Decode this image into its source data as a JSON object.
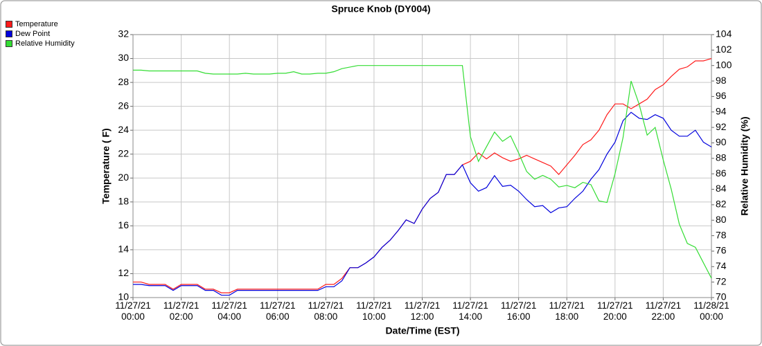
{
  "chart_data": {
    "type": "line",
    "title": "Spruce Knob (DY004)",
    "xlabel": "Date/Time (EST)",
    "ylabel": "Temperature ( F)",
    "y2label": "Relative Humidity (%)",
    "grid": true,
    "legend": "top-left",
    "x": [
      "11/27/21 00:00",
      "11/27/21 00:20",
      "11/27/21 00:40",
      "11/27/21 01:00",
      "11/27/21 01:20",
      "11/27/21 01:40",
      "11/27/21 02:00",
      "11/27/21 02:20",
      "11/27/21 02:40",
      "11/27/21 03:00",
      "11/27/21 03:20",
      "11/27/21 03:40",
      "11/27/21 04:00",
      "11/27/21 04:20",
      "11/27/21 04:40",
      "11/27/21 05:00",
      "11/27/21 05:20",
      "11/27/21 05:40",
      "11/27/21 06:00",
      "11/27/21 06:20",
      "11/27/21 06:40",
      "11/27/21 07:00",
      "11/27/21 07:20",
      "11/27/21 07:40",
      "11/27/21 08:00",
      "11/27/21 08:20",
      "11/27/21 08:40",
      "11/27/21 09:00",
      "11/27/21 09:20",
      "11/27/21 09:40",
      "11/27/21 10:00",
      "11/27/21 10:20",
      "11/27/21 10:40",
      "11/27/21 11:00",
      "11/27/21 11:20",
      "11/27/21 11:40",
      "11/27/21 12:00",
      "11/27/21 12:20",
      "11/27/21 12:40",
      "11/27/21 13:00",
      "11/27/21 13:20",
      "11/27/21 13:40",
      "11/27/21 14:00",
      "11/27/21 14:20",
      "11/27/21 14:40",
      "11/27/21 15:00",
      "11/27/21 15:20",
      "11/27/21 15:40",
      "11/27/21 16:00",
      "11/27/21 16:20",
      "11/27/21 16:40",
      "11/27/21 17:00",
      "11/27/21 17:20",
      "11/27/21 17:40",
      "11/27/21 18:00",
      "11/27/21 18:20",
      "11/27/21 18:40",
      "11/27/21 19:00",
      "11/27/21 19:20",
      "11/27/21 19:40",
      "11/27/21 20:00",
      "11/27/21 20:20",
      "11/27/21 20:40",
      "11/27/21 21:00",
      "11/27/21 21:20",
      "11/27/21 21:40",
      "11/27/21 22:00",
      "11/27/21 22:20",
      "11/27/21 22:40",
      "11/27/21 23:00",
      "11/27/21 23:20",
      "11/27/21 23:40",
      "11/28/21 00:00"
    ],
    "xlim": [
      "11/27/21 00:00",
      "11/28/21 00:00"
    ],
    "xticks": [
      {
        "value": "11/27/21 00:00",
        "label": "11/27/21\n00:00"
      },
      {
        "value": "11/27/21 02:00",
        "label": "11/27/21\n02:00"
      },
      {
        "value": "11/27/21 04:00",
        "label": "11/27/21\n04:00"
      },
      {
        "value": "11/27/21 06:00",
        "label": "11/27/21\n06:00"
      },
      {
        "value": "11/27/21 08:00",
        "label": "11/27/21\n08:00"
      },
      {
        "value": "11/27/21 10:00",
        "label": "11/27/21\n10:00"
      },
      {
        "value": "11/27/21 12:00",
        "label": "11/27/21\n12:00"
      },
      {
        "value": "11/27/21 14:00",
        "label": "11/27/21\n14:00"
      },
      {
        "value": "11/27/21 16:00",
        "label": "11/27/21\n16:00"
      },
      {
        "value": "11/27/21 18:00",
        "label": "11/27/21\n18:00"
      },
      {
        "value": "11/27/21 20:00",
        "label": "11/27/21\n20:00"
      },
      {
        "value": "11/27/21 22:00",
        "label": "11/27/21\n22:00"
      },
      {
        "value": "11/28/21 00:00",
        "label": "11/28/21\n00:00"
      }
    ],
    "ylim": [
      10,
      32
    ],
    "yticks": [
      10,
      12,
      14,
      16,
      18,
      20,
      22,
      24,
      26,
      28,
      30,
      32
    ],
    "y2lim": [
      70,
      104
    ],
    "y2ticks": [
      70,
      72,
      74,
      76,
      78,
      80,
      82,
      84,
      86,
      88,
      90,
      92,
      94,
      96,
      98,
      100,
      102,
      104
    ],
    "series": [
      {
        "name": "Temperature",
        "color": "#ff1a1a",
        "axis": "y",
        "values": [
          11.3,
          11.3,
          11.1,
          11.1,
          11.1,
          10.7,
          11.1,
          11.1,
          11.1,
          10.7,
          10.7,
          10.4,
          10.4,
          10.7,
          10.7,
          10.7,
          10.7,
          10.7,
          10.7,
          10.7,
          10.7,
          10.7,
          10.7,
          10.7,
          11.1,
          11.1,
          11.6,
          12.5,
          12.5,
          12.9,
          13.4,
          14.2,
          14.8,
          15.6,
          16.5,
          16.2,
          17.4,
          18.3,
          18.8,
          20.3,
          20.3,
          21.1,
          21.4,
          22.1,
          21.6,
          22.1,
          21.7,
          21.4,
          21.6,
          21.9,
          21.6,
          21.3,
          21.0,
          20.3,
          21.1,
          21.9,
          22.8,
          23.2,
          24.0,
          25.3,
          26.2,
          26.2,
          25.8,
          26.2,
          26.6,
          27.4,
          27.8,
          28.5,
          29.1,
          29.3,
          29.8,
          29.8,
          30.0
        ]
      },
      {
        "name": "Dew Point",
        "color": "#0000dd",
        "axis": "y",
        "values": [
          11.1,
          11.1,
          11.0,
          11.0,
          11.0,
          10.6,
          11.0,
          11.0,
          11.0,
          10.6,
          10.6,
          10.2,
          10.2,
          10.6,
          10.6,
          10.6,
          10.6,
          10.6,
          10.6,
          10.6,
          10.6,
          10.6,
          10.6,
          10.6,
          10.9,
          10.9,
          11.4,
          12.5,
          12.5,
          12.9,
          13.4,
          14.2,
          14.8,
          15.6,
          16.5,
          16.2,
          17.4,
          18.3,
          18.8,
          20.3,
          20.3,
          21.1,
          19.6,
          18.9,
          19.2,
          20.2,
          19.3,
          19.4,
          18.9,
          18.2,
          17.6,
          17.7,
          17.1,
          17.5,
          17.6,
          18.3,
          18.9,
          19.9,
          20.7,
          22.0,
          23.0,
          24.8,
          25.5,
          25.0,
          24.9,
          25.3,
          25.0,
          24.0,
          23.5,
          23.5,
          24.0,
          23.0,
          22.6
        ]
      },
      {
        "name": "Relative Humidity",
        "color": "#33dd33",
        "axis": "y2",
        "values": [
          99.4,
          99.4,
          99.3,
          99.3,
          99.3,
          99.3,
          99.3,
          99.3,
          99.3,
          99.0,
          98.9,
          98.9,
          98.9,
          98.9,
          99.0,
          98.9,
          98.9,
          98.9,
          99.0,
          99.0,
          99.2,
          98.9,
          98.9,
          99.0,
          99.0,
          99.2,
          99.6,
          99.8,
          100,
          100,
          100,
          100,
          100,
          100,
          100,
          100,
          100,
          100,
          100,
          100,
          100,
          100,
          90.8,
          87.6,
          89.5,
          91.4,
          90.2,
          90.9,
          88.7,
          86.3,
          85.3,
          85.8,
          85.3,
          84.3,
          84.5,
          84.2,
          84.9,
          84.6,
          82.5,
          82.3,
          86.0,
          90.7,
          98.0,
          95.0,
          91.0,
          92.0,
          87.8,
          84.0,
          79.5,
          77.0,
          76.5,
          74.5,
          72.5
        ]
      }
    ]
  }
}
